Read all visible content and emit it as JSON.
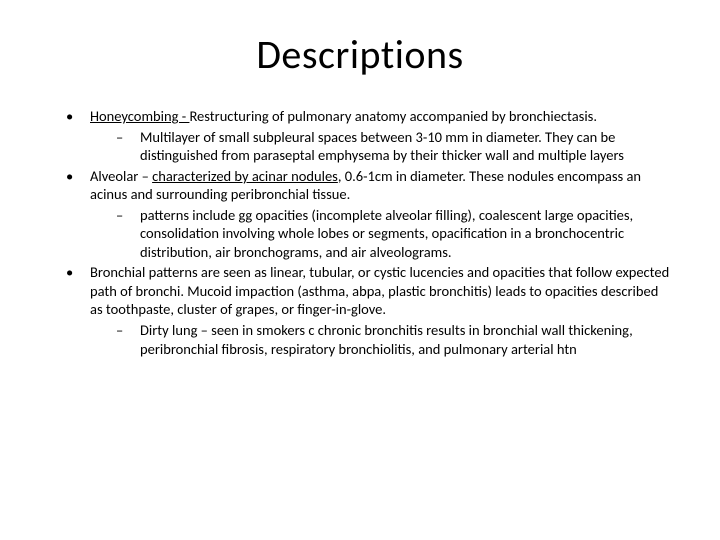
{
  "title": "Descriptions",
  "font": {
    "title_size_pt": 40,
    "body_size_pt": 14.5,
    "family": "Calibri"
  },
  "colors": {
    "background": "#ffffff",
    "text": "#000000"
  },
  "bullets": [
    {
      "lead": "Honeycombing - ",
      "rest": "Restructuring of pulmonary anatomy accompanied by bronchiectasis.",
      "lead_underline": true,
      "subs": [
        {
          "text": "Multilayer of small subpleural spaces between 3-10 mm in diameter. They can be distinguished from paraseptal emphysema by their thicker wall and multiple layers"
        }
      ]
    },
    {
      "lead": "Alveolar – ",
      "rest_underline_part": "characterized by acinar nodules",
      "rest_after": ", 0.6-1cm in diameter. These nodules encompass an acinus and surrounding peribronchial tissue.",
      "subs": [
        {
          "text": "patterns include gg opacities (incomplete alveolar filling), coalescent large opacities, consolidation involving whole lobes or segments, opacification in a bronchocentric distribution, air bronchograms, and air alveolograms."
        }
      ]
    },
    {
      "plain": "Bronchial patterns are seen as linear, tubular, or cystic lucencies and opacities that follow expected path of bronchi. Mucoid impaction (asthma, abpa, plastic bronchitis) leads to opacities described as toothpaste, cluster of grapes, or finger-in-glove.",
      "subs": [
        {
          "text": "Dirty lung – seen in smokers c chronic bronchitis results in bronchial wall thickening, peribronchial fibrosis, respiratory bronchiolitis, and pulmonary arterial htn"
        }
      ]
    }
  ],
  "bullet_char": "•",
  "dash_char": "–"
}
